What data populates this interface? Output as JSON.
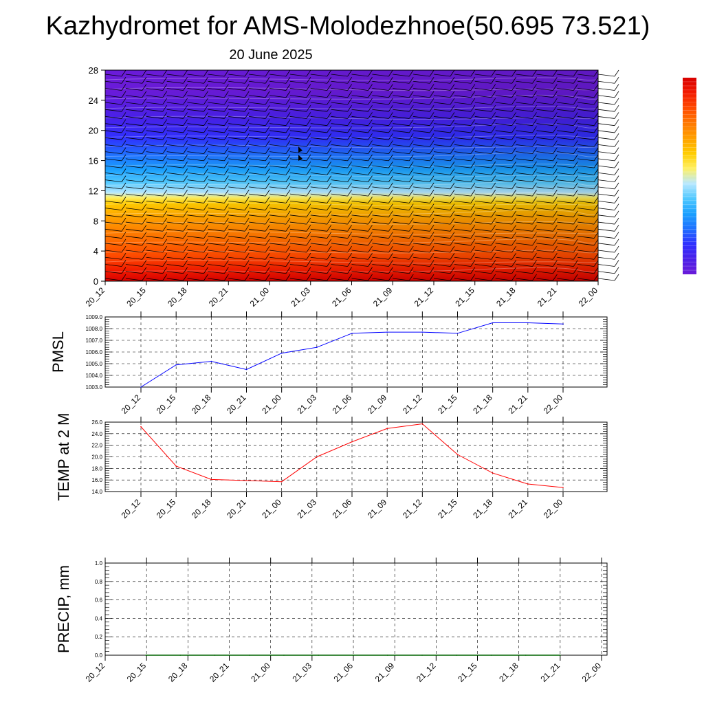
{
  "title": "Kazhydromet for AMS-Molodezhnoe(50.695 73.521)",
  "subtitle": "20 June 2025",
  "time_labels": [
    "20_12",
    "20_15",
    "20_18",
    "20_21",
    "21_00",
    "21_03",
    "21_06",
    "21_09",
    "21_12",
    "21_15",
    "21_18",
    "21_21",
    "22_00"
  ],
  "colors": {
    "pmsl_line": "#0000ff",
    "temp_line": "#ff0000",
    "precip_line": "#006400",
    "grid": "#000000"
  },
  "chart_data": [
    {
      "type": "heatmap",
      "x": [
        "20_12",
        "20_15",
        "20_18",
        "20_21",
        "21_00",
        "21_03",
        "21_06",
        "21_09",
        "21_12",
        "21_15",
        "21_18",
        "21_21",
        "22_00"
      ],
      "ylim": [
        0,
        28
      ],
      "yticks": [
        0,
        4,
        8,
        12,
        16,
        20,
        24,
        28
      ],
      "colorbar": [
        "#6a1bd9",
        "#4a20e8",
        "#3030ff",
        "#2070ff",
        "#1aa0ff",
        "#50c8ff",
        "#b8e8ff",
        "#fff060",
        "#ffcc00",
        "#ffa000",
        "#ff7800",
        "#ff4a00",
        "#f21a00",
        "#d80000"
      ],
      "wind_barbs": true
    },
    {
      "type": "line",
      "ylabel": "PMSL",
      "x": [
        "20_12",
        "20_15",
        "20_18",
        "20_21",
        "21_00",
        "21_03",
        "21_06",
        "21_09",
        "21_12",
        "21_15",
        "21_18",
        "21_21",
        "22_00"
      ],
      "series": [
        {
          "values": [
            1003.0,
            1004.9,
            1005.2,
            1004.5,
            1005.9,
            1006.4,
            1007.6,
            1007.7,
            1007.7,
            1007.6,
            1008.5,
            1008.5,
            1008.4
          ]
        }
      ],
      "ylim": [
        1003.0,
        1009.0
      ],
      "yticks": [
        "1003.0",
        "1004.0",
        "1005.0",
        "1006.0",
        "1007.0",
        "1008.0",
        "1009.0"
      ],
      "grid": true
    },
    {
      "type": "line",
      "ylabel": "TEMP at 2 M",
      "x": [
        "20_12",
        "20_15",
        "20_18",
        "20_21",
        "21_00",
        "21_03",
        "21_06",
        "21_09",
        "21_12",
        "21_15",
        "21_18",
        "21_21",
        "22_00"
      ],
      "series": [
        {
          "values": [
            25.2,
            18.4,
            16.1,
            15.9,
            15.7,
            20.0,
            22.6,
            24.9,
            25.7,
            20.4,
            17.2,
            15.3,
            14.7
          ]
        }
      ],
      "ylim": [
        14.0,
        26.0
      ],
      "yticks": [
        "14.0",
        "16.0",
        "18.0",
        "20.0",
        "22.0",
        "24.0",
        "26.0"
      ],
      "grid": true
    },
    {
      "type": "line",
      "ylabel": "PRECIP, mm",
      "x": [
        "20_12",
        "20_15",
        "20_18",
        "20_21",
        "21_00",
        "21_03",
        "21_06",
        "21_09",
        "21_12",
        "21_15",
        "21_18",
        "21_21",
        "22_00"
      ],
      "series": [
        {
          "values": [
            0,
            0,
            0,
            0,
            0,
            0,
            0,
            0,
            0,
            0,
            0,
            0,
            0
          ]
        }
      ],
      "ylim": [
        0.0,
        1.0
      ],
      "yticks": [
        "0.0",
        "0.2",
        "0.4",
        "0.6",
        "0.8",
        "1.0"
      ],
      "grid": true
    }
  ]
}
